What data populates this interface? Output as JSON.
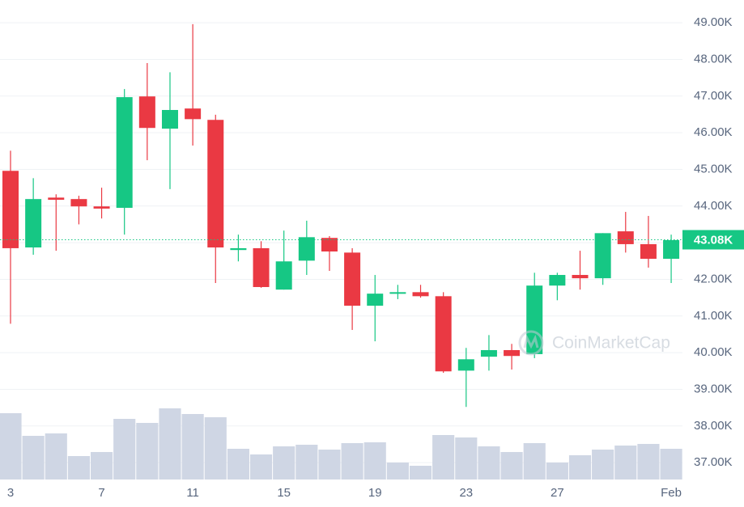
{
  "chart_data": {
    "type": "candlestick",
    "categories": [
      "3",
      null,
      null,
      null,
      "7",
      null,
      null,
      null,
      "11",
      null,
      null,
      null,
      "15",
      null,
      null,
      null,
      "19",
      null,
      null,
      null,
      "23",
      null,
      null,
      null,
      "27",
      null,
      null,
      null,
      null,
      "Feb"
    ],
    "open": [
      44.96,
      42.87,
      44.23,
      44.19,
      43.99,
      43.95,
      46.99,
      46.11,
      46.66,
      46.35,
      42.8,
      42.85,
      41.72,
      42.51,
      43.13,
      42.73,
      41.28,
      41.61,
      41.65,
      41.54,
      39.51,
      39.89,
      40.07,
      39.96,
      41.83,
      42.12,
      42.03,
      43.31,
      42.96,
      42.56
    ],
    "high": [
      45.51,
      44.76,
      44.32,
      44.28,
      44.5,
      47.19,
      47.9,
      47.65,
      48.96,
      46.49,
      43.22,
      43.04,
      43.33,
      43.6,
      43.18,
      42.85,
      42.12,
      41.85,
      41.85,
      41.65,
      40.13,
      40.48,
      40.24,
      42.18,
      42.18,
      42.78,
      43.26,
      43.84,
      43.73,
      43.22
    ],
    "low": [
      40.79,
      42.67,
      42.78,
      43.5,
      43.66,
      43.22,
      45.25,
      44.46,
      45.65,
      41.9,
      42.49,
      41.77,
      41.72,
      42.12,
      42.23,
      40.62,
      40.31,
      41.46,
      41.5,
      39.45,
      38.52,
      39.51,
      39.54,
      39.85,
      41.43,
      41.72,
      41.85,
      42.73,
      42.32,
      41.9
    ],
    "close": [
      42.85,
      44.19,
      44.17,
      43.99,
      43.93,
      46.97,
      46.13,
      46.62,
      46.37,
      42.87,
      42.85,
      41.79,
      42.49,
      43.15,
      42.76,
      41.28,
      41.61,
      41.65,
      41.54,
      39.49,
      39.82,
      40.07,
      39.91,
      41.83,
      42.12,
      42.03,
      43.26,
      42.96,
      42.56,
      43.07
    ],
    "volume": [
      82,
      54,
      57,
      29,
      34,
      75,
      70,
      88,
      81,
      77,
      38,
      31,
      41,
      43,
      37,
      45,
      46,
      21,
      17,
      55,
      52,
      41,
      34,
      45,
      21,
      30,
      37,
      42,
      44,
      38
    ],
    "up_color": "#16c784",
    "down_color": "#ea3943",
    "volume_color": "#cfd6e4",
    "ylim": [
      36.54,
      49.62
    ],
    "yticks": [
      {
        "value": 49,
        "label": "49.00K"
      },
      {
        "value": 48,
        "label": "48.00K"
      },
      {
        "value": 47,
        "label": "47.00K"
      },
      {
        "value": 46,
        "label": "46.00K"
      },
      {
        "value": 45,
        "label": "45.00K"
      },
      {
        "value": 44,
        "label": "44.00K"
      },
      {
        "value": 43,
        "label": "43.00K"
      },
      {
        "value": 42,
        "label": "42.00K"
      },
      {
        "value": 41,
        "label": "41.00K"
      },
      {
        "value": 40,
        "label": "40.00K"
      },
      {
        "value": 39,
        "label": "39.00K"
      },
      {
        "value": 38,
        "label": "38.00K"
      },
      {
        "value": 37,
        "label": "37.00K"
      }
    ],
    "grid": true,
    "current_price": {
      "value": 43.08,
      "label": "43.08K"
    },
    "watermark": "CoinMarketCap"
  }
}
